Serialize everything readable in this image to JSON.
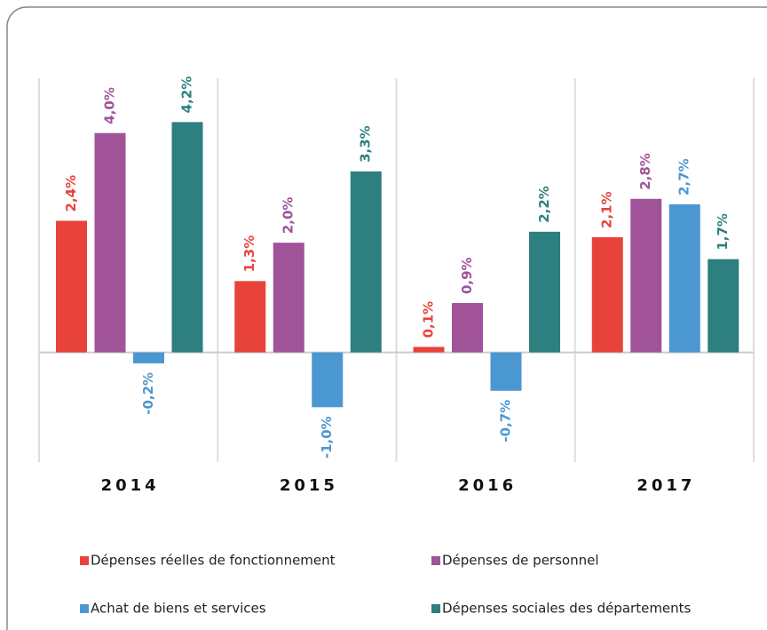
{
  "chart_data": {
    "type": "bar",
    "categories": [
      "2014",
      "2015",
      "2016",
      "2017"
    ],
    "series": [
      {
        "name": "Dépenses réelles de fonctionnement",
        "color": "#e8433b",
        "values": [
          2.4,
          1.3,
          0.1,
          2.1
        ],
        "value_labels": [
          "2,4%",
          "1,3%",
          "0,1%",
          "2,1%"
        ]
      },
      {
        "name": "Dépenses de personnel",
        "color": "#a05399",
        "values": [
          4.0,
          2.0,
          0.9,
          2.8
        ],
        "value_labels": [
          "4,0%",
          "2,0%",
          "0,9%",
          "2,8%"
        ]
      },
      {
        "name": "Achat de biens et services",
        "color": "#4b97d1",
        "values": [
          -0.2,
          -1.0,
          -0.7,
          2.7
        ],
        "value_labels": [
          "-0,2%",
          "-1,0%",
          "-0,7%",
          "2,7%"
        ]
      },
      {
        "name": "Dépenses sociales des départements",
        "color": "#2e7f7f",
        "values": [
          4.2,
          3.3,
          2.2,
          1.7
        ],
        "value_labels": [
          "4,2%",
          "3,3%",
          "2,2%",
          "1,7%"
        ]
      }
    ],
    "ylim": [
      -2,
      5
    ],
    "legend": "bottom"
  }
}
